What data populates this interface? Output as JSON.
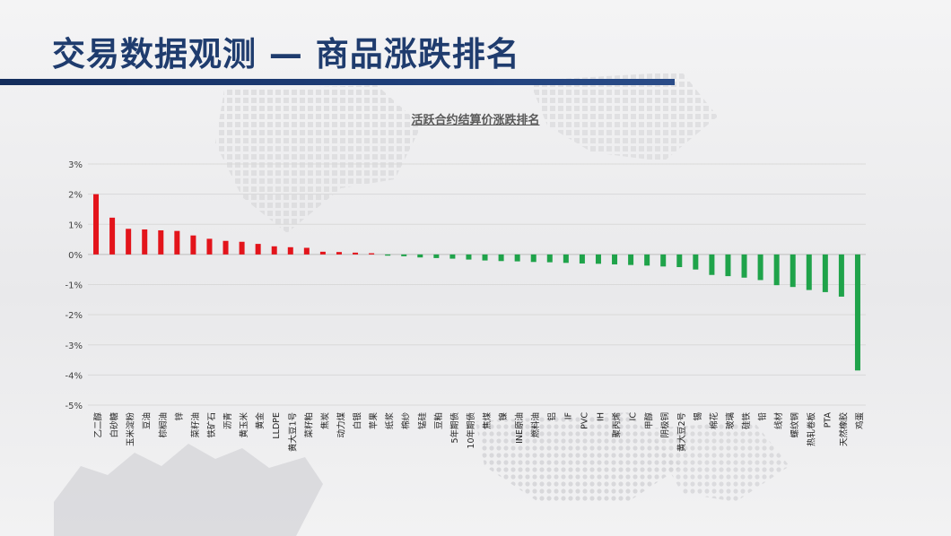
{
  "slide": {
    "title": "交易数据观测 — 商品涨跌排名"
  },
  "colors": {
    "up": "#e3141b",
    "down": "#1fa34a",
    "title": "#1f3c6e",
    "bar_accent": "#1f3f7a"
  },
  "chart_data": {
    "type": "bar",
    "title": "活跃合约结算价涨跌排名",
    "xlabel": "",
    "ylabel": "",
    "ylim": [
      -5,
      3
    ],
    "ytick_labels": [
      "3%",
      "2%",
      "1%",
      "0%",
      "-1%",
      "-2%",
      "-3%",
      "-4%",
      "-5%"
    ],
    "grid": "horizontal",
    "unit": "%",
    "categories": [
      "乙二醇",
      "白砂糖",
      "玉米淀粉",
      "豆油",
      "棕榈油",
      "锌",
      "菜籽油",
      "铁矿石",
      "沥青",
      "黄玉米",
      "黄金",
      "LLDPE",
      "黄大豆1号",
      "菜籽粕",
      "焦炭",
      "动力煤",
      "白银",
      "苹果",
      "纸浆",
      "棉纱",
      "锰硅",
      "豆粕",
      "5年期债",
      "10年期债",
      "焦煤",
      "镍",
      "INE原油",
      "燃料油",
      "铝",
      "IF",
      "PVC",
      "IH",
      "聚丙烯",
      "IC",
      "甲醇",
      "阴极铜",
      "黄大豆2号",
      "锡",
      "棉花",
      "玻璃",
      "硅铁",
      "铅",
      "线材",
      "螺纹钢",
      "热轧卷板",
      "PTA",
      "天然橡胶",
      "鸡蛋"
    ],
    "values": [
      2.0,
      1.22,
      0.85,
      0.83,
      0.8,
      0.78,
      0.63,
      0.52,
      0.45,
      0.42,
      0.35,
      0.27,
      0.24,
      0.22,
      0.09,
      0.08,
      0.06,
      0.04,
      -0.04,
      -0.06,
      -0.1,
      -0.12,
      -0.14,
      -0.17,
      -0.2,
      -0.22,
      -0.23,
      -0.25,
      -0.26,
      -0.28,
      -0.3,
      -0.31,
      -0.33,
      -0.35,
      -0.37,
      -0.4,
      -0.42,
      -0.5,
      -0.68,
      -0.72,
      -0.77,
      -0.85,
      -1.02,
      -1.08,
      -1.18,
      -1.25,
      -1.4,
      -3.85
    ]
  }
}
